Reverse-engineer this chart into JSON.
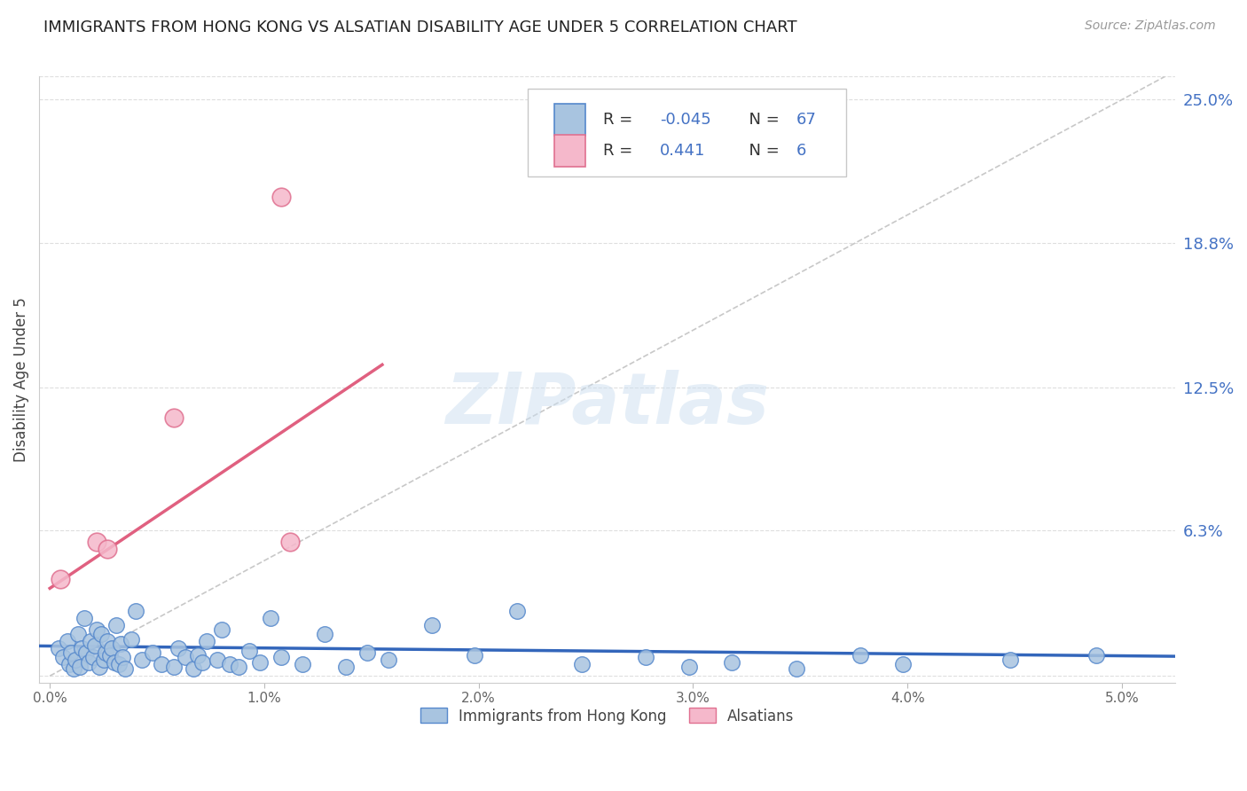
{
  "title": "IMMIGRANTS FROM HONG KONG VS ALSATIAN DISABILITY AGE UNDER 5 CORRELATION CHART",
  "source": "Source: ZipAtlas.com",
  "ylabel": "Disability Age Under 5",
  "x_tick_vals": [
    0.0,
    1.0,
    2.0,
    3.0,
    4.0,
    5.0
  ],
  "x_tick_labels": [
    "0.0%",
    "1.0%",
    "2.0%",
    "3.0%",
    "4.0%",
    "5.0%"
  ],
  "y_right_ticks": [
    0.0,
    6.3,
    12.5,
    18.8,
    25.0
  ],
  "y_right_tick_labels": [
    "",
    "6.3%",
    "12.5%",
    "18.8%",
    "25.0%"
  ],
  "xlim": [
    -0.05,
    5.25
  ],
  "ylim": [
    -0.3,
    26.0
  ],
  "legend_R1": "-0.045",
  "legend_N1": "67",
  "legend_R2": "0.441",
  "legend_N2": "6",
  "blue_face_color": "#a8c4e0",
  "blue_edge_color": "#5588cc",
  "pink_face_color": "#f5b8cb",
  "pink_edge_color": "#e07090",
  "blue_trend_color": "#3366bb",
  "pink_trend_color": "#e06080",
  "diag_color": "#c8c8c8",
  "grid_color": "#dedede",
  "right_tick_color": "#4472c4",
  "legend_text_color": "#4472c4",
  "legend_label_color": "#333333",
  "blue_scatter_x": [
    0.04,
    0.06,
    0.08,
    0.09,
    0.1,
    0.11,
    0.12,
    0.13,
    0.14,
    0.15,
    0.16,
    0.17,
    0.18,
    0.19,
    0.2,
    0.21,
    0.22,
    0.23,
    0.24,
    0.25,
    0.26,
    0.27,
    0.28,
    0.29,
    0.3,
    0.31,
    0.32,
    0.33,
    0.34,
    0.35,
    0.38,
    0.4,
    0.43,
    0.48,
    0.52,
    0.58,
    0.6,
    0.63,
    0.67,
    0.69,
    0.71,
    0.73,
    0.78,
    0.8,
    0.84,
    0.88,
    0.93,
    0.98,
    1.03,
    1.08,
    1.18,
    1.28,
    1.38,
    1.48,
    1.58,
    1.78,
    1.98,
    2.18,
    2.48,
    2.78,
    2.98,
    3.18,
    3.48,
    3.78,
    3.98,
    4.48,
    4.88
  ],
  "blue_scatter_y": [
    1.2,
    0.8,
    1.5,
    0.5,
    1.0,
    0.3,
    0.7,
    1.8,
    0.4,
    1.2,
    2.5,
    1.0,
    0.6,
    1.5,
    0.8,
    1.3,
    2.0,
    0.4,
    1.8,
    0.7,
    1.0,
    1.5,
    0.9,
    1.2,
    0.6,
    2.2,
    0.5,
    1.4,
    0.8,
    0.3,
    1.6,
    2.8,
    0.7,
    1.0,
    0.5,
    0.4,
    1.2,
    0.8,
    0.3,
    0.9,
    0.6,
    1.5,
    0.7,
    2.0,
    0.5,
    0.4,
    1.1,
    0.6,
    2.5,
    0.8,
    0.5,
    1.8,
    0.4,
    1.0,
    0.7,
    2.2,
    0.9,
    2.8,
    0.5,
    0.8,
    0.4,
    0.6,
    0.3,
    0.9,
    0.5,
    0.7,
    0.9
  ],
  "pink_scatter_x": [
    0.05,
    0.22,
    0.27,
    0.58,
    1.08,
    1.12
  ],
  "pink_scatter_y": [
    4.2,
    5.8,
    5.5,
    11.2,
    20.8,
    5.8
  ],
  "blue_trend_x0": -0.05,
  "blue_trend_x1": 5.25,
  "blue_trend_y0": 1.3,
  "blue_trend_y1": 0.85,
  "pink_trend_x0": 0.0,
  "pink_trend_x1": 1.55,
  "pink_trend_y0": 3.8,
  "pink_trend_y1": 13.5,
  "diag_x0": 0.0,
  "diag_x1": 5.2,
  "diag_y0": 0.0,
  "diag_y1": 26.0,
  "bg_color": "#ffffff"
}
